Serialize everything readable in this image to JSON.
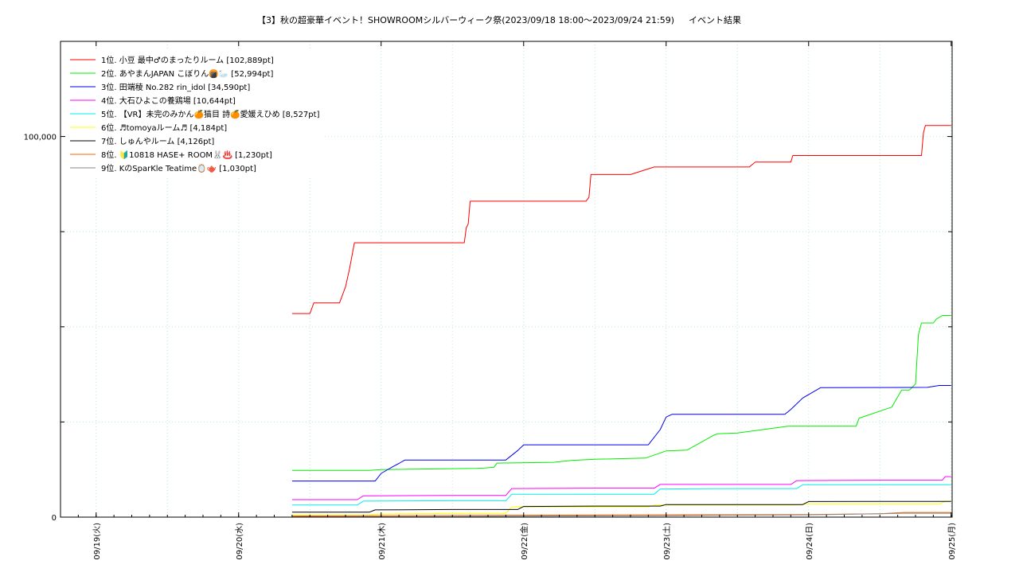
{
  "chart_data": {
    "type": "line",
    "title": "【3】秋の超豪華イベント！SHOWROOMシルバーウィーク祭(2023/09/18 18:00〜2023/09/24 21:59)",
    "subtitle": "イベント結果",
    "xlabel": "",
    "ylabel": "",
    "x_axis": {
      "min": "2023-09-18 18:00",
      "max": "2023-09-25 00:10",
      "minor_grid_hours": 12
    },
    "y_axis": {
      "min": 0,
      "max": 125000
    },
    "x_ticks": [
      {
        "label": "09/19(火)",
        "x": "2023-09-19 00:00"
      },
      {
        "label": "09/20(水)",
        "x": "2023-09-20 00:00"
      },
      {
        "label": "09/21(木)",
        "x": "2023-09-21 00:00"
      },
      {
        "label": "09/22(金)",
        "x": "2023-09-22 00:00"
      },
      {
        "label": "09/23(土)",
        "x": "2023-09-23 00:00"
      },
      {
        "label": "09/24(日)",
        "x": "2023-09-24 00:00"
      },
      {
        "label": "09/25(月)",
        "x": "2023-09-25 00:00"
      }
    ],
    "y_ticks": [
      {
        "label": "0",
        "value": 0
      },
      {
        "label": "100,000",
        "value": 100000
      }
    ],
    "y_minor_ticks": [
      25000,
      50000,
      75000
    ],
    "grid": true,
    "legend_position": "top-left",
    "series": [
      {
        "name": "1位. 小豆 最中♂のまったりルーム [102,889pt]",
        "color": "#ff0000",
        "points": [
          [
            "2023-09-20 09:00",
            53500
          ],
          [
            "2023-09-20 12:00",
            53500
          ],
          [
            "2023-09-20 12:40",
            56300
          ],
          [
            "2023-09-20 15:00",
            56300
          ],
          [
            "2023-09-20 17:00",
            56300
          ],
          [
            "2023-09-20 18:00",
            60500
          ],
          [
            "2023-09-20 18:40",
            65200
          ],
          [
            "2023-09-20 19:30",
            72100
          ],
          [
            "2023-09-21 10:00",
            72100
          ],
          [
            "2023-09-21 13:00",
            72100
          ],
          [
            "2023-09-21 14:00",
            72100
          ],
          [
            "2023-09-21 14:20",
            76000
          ],
          [
            "2023-09-21 14:40",
            77000
          ],
          [
            "2023-09-21 15:00",
            83000
          ],
          [
            "2023-09-21 18:00",
            83000
          ],
          [
            "2023-09-22 06:00",
            83000
          ],
          [
            "2023-09-22 10:30",
            83000
          ],
          [
            "2023-09-22 11:00",
            84000
          ],
          [
            "2023-09-22 11:20",
            90000
          ],
          [
            "2023-09-22 18:00",
            90000
          ],
          [
            "2023-09-22 22:00",
            92000
          ],
          [
            "2023-09-23 00:00",
            92000
          ],
          [
            "2023-09-23 06:00",
            92000
          ],
          [
            "2023-09-23 14:00",
            92000
          ],
          [
            "2023-09-23 15:00",
            93300
          ],
          [
            "2023-09-23 19:00",
            93300
          ],
          [
            "2023-09-23 21:00",
            93300
          ],
          [
            "2023-09-23 21:20",
            95000
          ],
          [
            "2023-09-24 12:00",
            95000
          ],
          [
            "2023-09-24 18:00",
            95000
          ],
          [
            "2023-09-24 19:00",
            95000
          ],
          [
            "2023-09-24 19:20",
            101000
          ],
          [
            "2023-09-24 19:40",
            102889
          ],
          [
            "2023-09-25 00:00",
            102889
          ]
        ]
      },
      {
        "name": "2位. あやまんJAPAN こぼりん🍘🦢 [52,994pt]",
        "color": "#00ee00",
        "points": [
          [
            "2023-09-20 09:00",
            12300
          ],
          [
            "2023-09-20 22:00",
            12300
          ],
          [
            "2023-09-21 00:00",
            12500
          ],
          [
            "2023-09-21 16:00",
            12800
          ],
          [
            "2023-09-21 17:30",
            12900
          ],
          [
            "2023-09-21 19:00",
            13100
          ],
          [
            "2023-09-21 19:30",
            14200
          ],
          [
            "2023-09-22 05:00",
            14400
          ],
          [
            "2023-09-22 08:00",
            14900
          ],
          [
            "2023-09-22 12:00",
            15200
          ],
          [
            "2023-09-22 20:30",
            15500
          ],
          [
            "2023-09-23 00:00",
            17400
          ],
          [
            "2023-09-23 03:30",
            17600
          ],
          [
            "2023-09-23 08:00",
            21500
          ],
          [
            "2023-09-23 08:40",
            21900
          ],
          [
            "2023-09-23 12:00",
            22100
          ],
          [
            "2023-09-23 20:30",
            23900
          ],
          [
            "2023-09-24 08:00",
            23900
          ],
          [
            "2023-09-24 08:30",
            26000
          ],
          [
            "2023-09-24 14:00",
            28900
          ],
          [
            "2023-09-24 15:40",
            33400
          ],
          [
            "2023-09-24 17:00",
            33400
          ],
          [
            "2023-09-24 18:00",
            35000
          ],
          [
            "2023-09-24 18:30",
            48000
          ],
          [
            "2023-09-24 19:00",
            51000
          ],
          [
            "2023-09-24 21:00",
            51000
          ],
          [
            "2023-09-24 21:30",
            52000
          ],
          [
            "2023-09-24 22:30",
            52994
          ],
          [
            "2023-09-25 00:00",
            52994
          ]
        ]
      },
      {
        "name": "3位. 田端稜 No.282 rin_idol [34,590pt]",
        "color": "#0000ee",
        "points": [
          [
            "2023-09-20 09:00",
            9500
          ],
          [
            "2023-09-20 23:00",
            9500
          ],
          [
            "2023-09-21 00:00",
            11500
          ],
          [
            "2023-09-21 02:00",
            13300
          ],
          [
            "2023-09-21 03:00",
            14100
          ],
          [
            "2023-09-21 04:00",
            15000
          ],
          [
            "2023-09-21 12:00",
            15000
          ],
          [
            "2023-09-21 21:00",
            15000
          ],
          [
            "2023-09-21 23:00",
            17500
          ],
          [
            "2023-09-22 00:00",
            19000
          ],
          [
            "2023-09-22 12:00",
            19000
          ],
          [
            "2023-09-22 21:00",
            19000
          ],
          [
            "2023-09-22 23:00",
            23000
          ],
          [
            "2023-09-23 00:00",
            26300
          ],
          [
            "2023-09-23 01:00",
            27000
          ],
          [
            "2023-09-23 12:00",
            27000
          ],
          [
            "2023-09-23 20:00",
            27000
          ],
          [
            "2023-09-23 21:00",
            28300
          ],
          [
            "2023-09-23 23:00",
            31300
          ],
          [
            "2023-09-24 02:00",
            34000
          ],
          [
            "2023-09-24 20:00",
            34100
          ],
          [
            "2023-09-24 22:00",
            34590
          ],
          [
            "2023-09-25 00:00",
            34590
          ]
        ]
      },
      {
        "name": "4位. 大石ひよこの養鶏場 [10,644pt]",
        "color": "#ff00ff",
        "points": [
          [
            "2023-09-20 09:00",
            4600
          ],
          [
            "2023-09-20 20:00",
            4600
          ],
          [
            "2023-09-20 21:00",
            5600
          ],
          [
            "2023-09-21 12:00",
            5700
          ],
          [
            "2023-09-21 21:00",
            5700
          ],
          [
            "2023-09-21 22:00",
            7500
          ],
          [
            "2023-09-22 12:00",
            7600
          ],
          [
            "2023-09-22 22:00",
            7600
          ],
          [
            "2023-09-22 23:00",
            8600
          ],
          [
            "2023-09-23 12:00",
            8600
          ],
          [
            "2023-09-23 21:00",
            8600
          ],
          [
            "2023-09-23 22:00",
            9600
          ],
          [
            "2023-09-24 12:00",
            9700
          ],
          [
            "2023-09-24 22:30",
            9700
          ],
          [
            "2023-09-24 23:00",
            10644
          ],
          [
            "2023-09-25 00:00",
            10644
          ]
        ]
      },
      {
        "name": "5位. 【VR】未完のみかん🍊猫目 詩🍊愛媛えひめ [8,527pt]",
        "color": "#00eeee",
        "points": [
          [
            "2023-09-20 09:00",
            3200
          ],
          [
            "2023-09-20 20:00",
            3200
          ],
          [
            "2023-09-20 21:00",
            4200
          ],
          [
            "2023-09-21 12:00",
            4300
          ],
          [
            "2023-09-21 21:00",
            4300
          ],
          [
            "2023-09-21 22:00",
            6000
          ],
          [
            "2023-09-22 12:00",
            6000
          ],
          [
            "2023-09-22 22:00",
            6000
          ],
          [
            "2023-09-22 23:00",
            7400
          ],
          [
            "2023-09-23 12:00",
            7500
          ],
          [
            "2023-09-23 22:00",
            7500
          ],
          [
            "2023-09-23 23:00",
            8500
          ],
          [
            "2023-09-24 12:00",
            8527
          ],
          [
            "2023-09-25 00:00",
            8527
          ]
        ]
      },
      {
        "name": "6位. ♬tomoyaルーム♬ [4,184pt]",
        "color": "#ffff00",
        "points": [
          [
            "2023-09-20 09:00",
            500
          ],
          [
            "2023-09-20 22:00",
            500
          ],
          [
            "2023-09-20 23:00",
            800
          ],
          [
            "2023-09-21 12:00",
            1000
          ],
          [
            "2023-09-21 21:00",
            1000
          ],
          [
            "2023-09-21 22:00",
            2700
          ],
          [
            "2023-09-22 12:00",
            2700
          ],
          [
            "2023-09-22 21:00",
            2700
          ],
          [
            "2023-09-22 22:00",
            3200
          ],
          [
            "2023-09-23 12:00",
            3200
          ],
          [
            "2023-09-23 22:00",
            3200
          ],
          [
            "2023-09-23 23:00",
            3400
          ],
          [
            "2023-09-24 12:00",
            3400
          ],
          [
            "2023-09-24 22:00",
            3400
          ],
          [
            "2023-09-24 23:00",
            4184
          ],
          [
            "2023-09-25 00:00",
            4184
          ]
        ]
      },
      {
        "name": "7位. しゅんやルーム [4,126pt]",
        "color": "#000000",
        "points": [
          [
            "2023-09-20 09:00",
            1300
          ],
          [
            "2023-09-20 22:00",
            1300
          ],
          [
            "2023-09-20 23:00",
            1900
          ],
          [
            "2023-09-21 12:00",
            2000
          ],
          [
            "2023-09-21 23:00",
            2000
          ],
          [
            "2023-09-22 00:00",
            2800
          ],
          [
            "2023-09-22 12:00",
            2900
          ],
          [
            "2023-09-22 23:00",
            2900
          ],
          [
            "2023-09-23 00:00",
            3300
          ],
          [
            "2023-09-23 12:00",
            3300
          ],
          [
            "2023-09-23 23:00",
            3300
          ],
          [
            "2023-09-24 00:00",
            4100
          ],
          [
            "2023-09-24 12:00",
            4126
          ],
          [
            "2023-09-25 00:00",
            4126
          ]
        ]
      },
      {
        "name": "8位. 🔰10818 HASE+ ROOM🐰♨️ [1,230pt]",
        "color": "#ff6600",
        "points": [
          [
            "2023-09-20 09:00",
            300
          ],
          [
            "2023-09-21 00:00",
            400
          ],
          [
            "2023-09-22 00:00",
            500
          ],
          [
            "2023-09-23 00:00",
            600
          ],
          [
            "2023-09-24 00:00",
            700
          ],
          [
            "2023-09-24 12:00",
            900
          ],
          [
            "2023-09-24 16:00",
            1230
          ],
          [
            "2023-09-25 00:00",
            1230
          ]
        ]
      },
      {
        "name": "9位. KのSparKle Teatime🪞🫖 [1,030pt]",
        "color": "#888888",
        "points": [
          [
            "2023-09-20 09:00",
            100
          ],
          [
            "2023-09-21 12:00",
            150
          ],
          [
            "2023-09-22 00:00",
            250
          ],
          [
            "2023-09-23 00:00",
            400
          ],
          [
            "2023-09-24 00:00",
            600
          ],
          [
            "2023-09-24 12:00",
            900
          ],
          [
            "2023-09-24 16:00",
            1030
          ],
          [
            "2023-09-25 00:00",
            1030
          ]
        ]
      }
    ]
  }
}
